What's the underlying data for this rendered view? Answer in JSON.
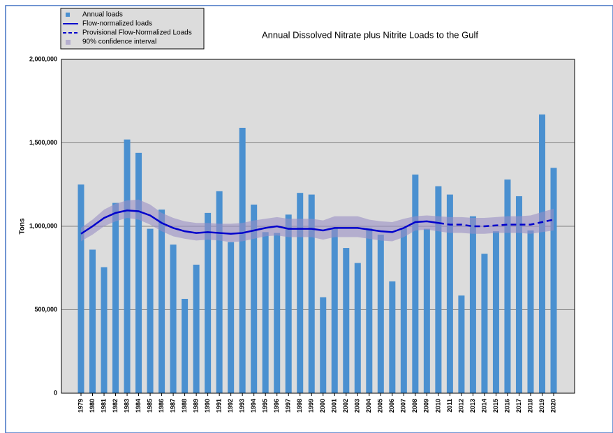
{
  "chart_data": {
    "type": "bar",
    "title": "Annual Dissolved Nitrate plus Nitrite Loads to the Gulf",
    "y_label": "Tons",
    "categories": [
      "1979",
      "1980",
      "1981",
      "1982",
      "1983",
      "1984",
      "1985",
      "1986",
      "1987",
      "1988",
      "1989",
      "1990",
      "1991",
      "1992",
      "1993",
      "1994",
      "1995",
      "1996",
      "1997",
      "1998",
      "1999",
      "2000",
      "2001",
      "2002",
      "2003",
      "2004",
      "2005",
      "2006",
      "2007",
      "2008",
      "2009",
      "2010",
      "2011",
      "2012",
      "2013",
      "2014",
      "2015",
      "2016",
      "2017",
      "2018",
      "2019",
      "2020"
    ],
    "series": [
      {
        "name": "Annual loads",
        "color": "#4a90d0",
        "values": [
          1250000,
          860000,
          755000,
          1140000,
          1520000,
          1440000,
          985000,
          1100000,
          890000,
          565000,
          770000,
          1080000,
          1210000,
          905000,
          1590000,
          1130000,
          965000,
          960000,
          1070000,
          1200000,
          1190000,
          575000,
          990000,
          870000,
          780000,
          990000,
          950000,
          670000,
          990000,
          1310000,
          985000,
          1240000,
          1190000,
          585000,
          1060000,
          835000,
          970000,
          1280000,
          1180000,
          975000,
          1670000,
          1350000
        ]
      },
      {
        "name": "Flow-normalized loads",
        "color": "#0000cc",
        "values": [
          955000,
          1000000,
          1050000,
          1080000,
          1095000,
          1090000,
          1065000,
          1020000,
          990000,
          970000,
          960000,
          965000,
          960000,
          955000,
          960000,
          975000,
          990000,
          1000000,
          985000,
          985000,
          985000,
          975000,
          990000,
          990000,
          990000,
          980000,
          970000,
          965000,
          990000,
          1025000,
          1030000,
          1020000,
          null,
          null,
          null,
          null,
          null,
          null,
          null,
          null,
          null,
          null
        ]
      },
      {
        "name": "Provisional Flow-Normalized Loads",
        "color": "#0000cc",
        "dashed": true,
        "values": [
          null,
          null,
          null,
          null,
          null,
          null,
          null,
          null,
          null,
          null,
          null,
          null,
          null,
          null,
          null,
          null,
          null,
          null,
          null,
          null,
          null,
          null,
          null,
          null,
          null,
          null,
          null,
          null,
          null,
          null,
          null,
          1020000,
          1010000,
          1010000,
          1000000,
          1000000,
          1005000,
          1010000,
          1010000,
          1010000,
          1025000,
          1040000
        ]
      }
    ],
    "confidence_interval": {
      "name": "90% confidence interval",
      "color": "#9990c4",
      "lower": [
        910000,
        950000,
        1000000,
        1030000,
        1050000,
        1040000,
        1010000,
        970000,
        940000,
        925000,
        915000,
        920000,
        915000,
        905000,
        910000,
        925000,
        940000,
        945000,
        935000,
        935000,
        935000,
        920000,
        935000,
        935000,
        935000,
        925000,
        915000,
        910000,
        935000,
        975000,
        980000,
        970000,
        960000,
        960000,
        955000,
        955000,
        960000,
        960000,
        960000,
        955000,
        965000,
        975000
      ],
      "upper": [
        990000,
        1040000,
        1100000,
        1135000,
        1155000,
        1160000,
        1130000,
        1080000,
        1050000,
        1030000,
        1020000,
        1020000,
        1015000,
        1015000,
        1020000,
        1035000,
        1045000,
        1055000,
        1045000,
        1045000,
        1045000,
        1035000,
        1060000,
        1060000,
        1060000,
        1040000,
        1030000,
        1025000,
        1045000,
        1060000,
        1065000,
        1060000,
        1055000,
        1055000,
        1050000,
        1050000,
        1055000,
        1060000,
        1060000,
        1065000,
        1085000,
        1105000
      ]
    },
    "ylim": [
      0,
      2000000
    ],
    "yticks": [
      0,
      {
        "value": 500000,
        "label": "500,000"
      },
      {
        "value": 1000000,
        "label": "1,000,000"
      },
      {
        "value": 1500000,
        "label": "1,500,000"
      },
      {
        "value": 2000000,
        "label": "2,000,000"
      }
    ],
    "grid": true
  }
}
